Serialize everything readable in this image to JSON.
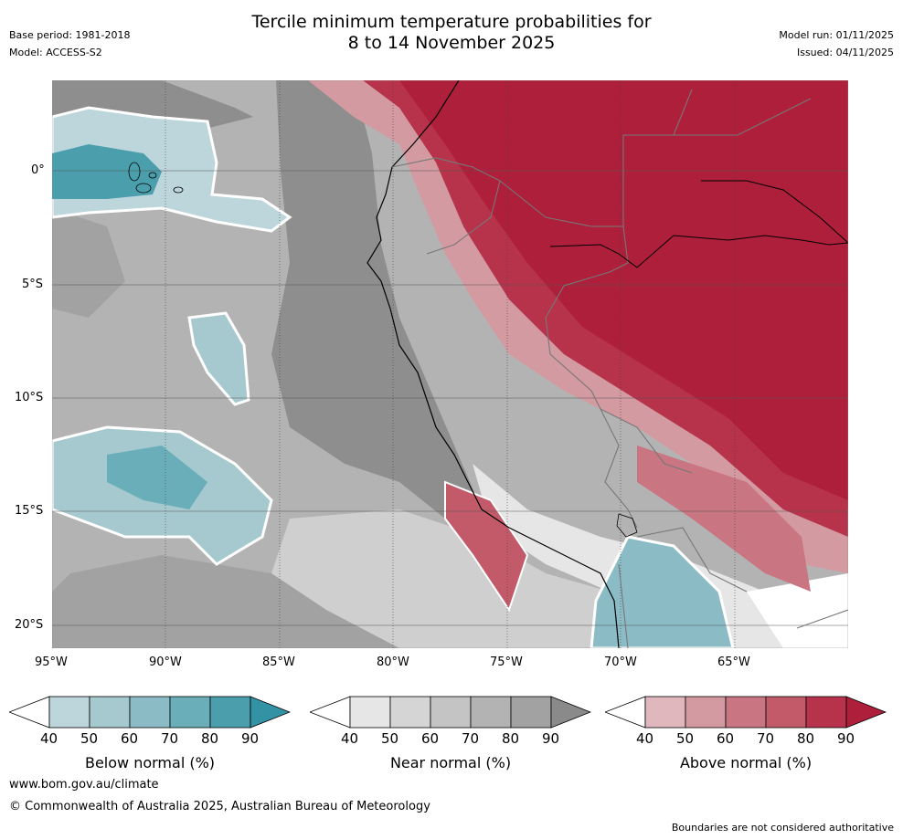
{
  "header": {
    "title_line1": "Tercile minimum temperature probabilities for",
    "title_line2": "8 to 14 November 2025",
    "base_period": "Base period: 1981-2018",
    "model": "Model: ACCESS-S2",
    "model_run": "Model run: 01/11/2025",
    "issued": "Issued: 04/11/2025"
  },
  "map": {
    "lon_labels": [
      "95°W",
      "90°W",
      "85°W",
      "80°W",
      "75°W",
      "70°W",
      "65°W"
    ],
    "lat_labels": [
      "0°",
      "5°S",
      "10°S",
      "15°S",
      "20°S"
    ]
  },
  "legends": [
    {
      "label": "Below normal (%)",
      "ticks": [
        "40",
        "50",
        "60",
        "70",
        "80",
        "90"
      ],
      "colors": [
        "#ffffff",
        "#bdd6db",
        "#a6c9cf",
        "#8bbcc6",
        "#6aaeb9",
        "#4b9fad",
        "#3392a4"
      ]
    },
    {
      "label": "Near normal (%)",
      "ticks": [
        "40",
        "50",
        "60",
        "70",
        "80",
        "90"
      ],
      "colors": [
        "#ffffff",
        "#e6e6e6",
        "#d5d5d5",
        "#c4c4c4",
        "#b3b3b3",
        "#a2a2a2",
        "#8a8a8a"
      ]
    },
    {
      "label": "Above normal (%)",
      "ticks": [
        "40",
        "50",
        "60",
        "70",
        "80",
        "90"
      ],
      "colors": [
        "#ffffff",
        "#e0b7bc",
        "#d49aa1",
        "#c97682",
        "#c25a69",
        "#b7334b",
        "#ae1f3b"
      ]
    }
  ],
  "footer": {
    "url": "www.bom.gov.au/climate",
    "copyright": "© Commonwealth of Australia 2025, Australian Bureau of Meteorology",
    "disclaimer": "Boundaries are not considered authoritative"
  }
}
